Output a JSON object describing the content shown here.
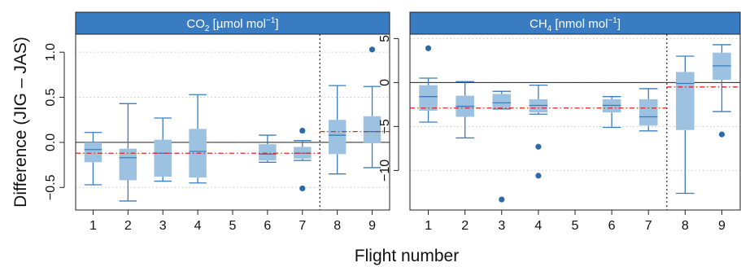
{
  "figure": {
    "ylabel": "Difference (JIG – JAS)",
    "xlabel": "Flight number"
  },
  "style": {
    "header_color": "#3a7cc1",
    "box_fill": "#9dc1e0",
    "whisker_color": "#3a7cc1",
    "outlier_color": "#2c6aa8",
    "mean_line_color": "#e3231c",
    "grid_color": "#c8c8c8"
  },
  "chart_data": [
    {
      "type": "box",
      "title_main": "CO",
      "title_sub": "2",
      "title_unit": " [µmol mol",
      "title_exp": "−1",
      "title_end": "]",
      "categories": [
        "1",
        "2",
        "3",
        "4",
        "5",
        "6",
        "7",
        "8",
        "9"
      ],
      "ylim": [
        -0.75,
        1.2
      ],
      "yticks": [
        -0.5,
        0.0,
        0.5,
        1.0
      ],
      "ytick_labels": [
        "−0.5",
        "0.0",
        "0.5",
        "1.0"
      ],
      "zero_line": 0,
      "separator_after_flight": 7,
      "mean_segments": [
        {
          "from": 1,
          "to": 7,
          "value": -0.12
        },
        {
          "from": 8,
          "to": 9,
          "value": 0.12
        }
      ],
      "boxes": [
        {
          "flight": "1",
          "whisker_low": -0.47,
          "q1": -0.22,
          "median": -0.08,
          "q3": 0.0,
          "whisker_high": 0.11,
          "outliers": []
        },
        {
          "flight": "2",
          "whisker_low": -0.65,
          "q1": -0.42,
          "median": -0.17,
          "q3": -0.07,
          "whisker_high": 0.43,
          "outliers": []
        },
        {
          "flight": "3",
          "whisker_low": -0.43,
          "q1": -0.38,
          "median": -0.12,
          "q3": 0.03,
          "whisker_high": 0.27,
          "outliers": []
        },
        {
          "flight": "4",
          "whisker_low": -0.45,
          "q1": -0.39,
          "median": -0.1,
          "q3": 0.15,
          "whisker_high": 0.53,
          "outliers": []
        },
        {
          "flight": "6",
          "whisker_low": -0.22,
          "q1": -0.2,
          "median": -0.13,
          "q3": -0.02,
          "whisker_high": 0.08,
          "outliers": []
        },
        {
          "flight": "7",
          "whisker_low": -0.2,
          "q1": -0.18,
          "median": -0.12,
          "q3": -0.05,
          "whisker_high": 0.02,
          "outliers": [
            0.13,
            -0.51
          ]
        },
        {
          "flight": "8",
          "whisker_low": -0.35,
          "q1": -0.13,
          "median": 0.08,
          "q3": 0.25,
          "whisker_high": 0.63,
          "outliers": []
        },
        {
          "flight": "9",
          "whisker_low": -0.28,
          "q1": -0.01,
          "median": 0.12,
          "q3": 0.29,
          "whisker_high": 0.62,
          "outliers": [
            1.03
          ]
        }
      ]
    },
    {
      "type": "box",
      "title_main": "CH",
      "title_sub": "4",
      "title_unit": " [nmol mol",
      "title_exp": "−1",
      "title_end": "]",
      "categories": [
        "1",
        "2",
        "3",
        "4",
        "5",
        "6",
        "7",
        "8",
        "9"
      ],
      "ylim": [
        -14.5,
        5.5
      ],
      "yticks": [
        -10,
        -5,
        0,
        5
      ],
      "ytick_labels": [
        "−10",
        "−5",
        "0",
        "5"
      ],
      "zero_line": 0,
      "separator_after_flight": 7,
      "mean_segments": [
        {
          "from": 1,
          "to": 7,
          "value": -2.9
        },
        {
          "from": 8,
          "to": 9,
          "value": -0.5
        }
      ],
      "boxes": [
        {
          "flight": "1",
          "whisker_low": -4.5,
          "q1": -3.2,
          "median": -1.6,
          "q3": -0.3,
          "whisker_high": 0.5,
          "outliers": [
            3.9
          ]
        },
        {
          "flight": "2",
          "whisker_low": -6.3,
          "q1": -3.9,
          "median": -2.7,
          "q3": -1.5,
          "whisker_high": 0.1,
          "outliers": []
        },
        {
          "flight": "3",
          "whisker_low": -3.0,
          "q1": -2.9,
          "median": -2.3,
          "q3": -1.3,
          "whisker_high": -1.0,
          "outliers": [
            -13.3
          ]
        },
        {
          "flight": "4",
          "whisker_low": -3.6,
          "q1": -3.4,
          "median": -2.6,
          "q3": -1.9,
          "whisker_high": -0.3,
          "outliers": [
            -7.3,
            -10.6
          ]
        },
        {
          "flight": "6",
          "whisker_low": -5.1,
          "q1": -3.4,
          "median": -2.6,
          "q3": -1.9,
          "whisker_high": -1.6,
          "outliers": []
        },
        {
          "flight": "7",
          "whisker_low": -5.5,
          "q1": -4.9,
          "median": -3.9,
          "q3": -1.9,
          "whisker_high": -0.7,
          "outliers": []
        },
        {
          "flight": "8",
          "whisker_low": -12.6,
          "q1": -5.4,
          "median": -0.1,
          "q3": 1.2,
          "whisker_high": 3.0,
          "outliers": []
        },
        {
          "flight": "9",
          "whisker_low": -3.3,
          "q1": 0.3,
          "median": 1.9,
          "q3": 3.4,
          "whisker_high": 4.3,
          "outliers": [
            -5.9
          ]
        }
      ]
    }
  ]
}
